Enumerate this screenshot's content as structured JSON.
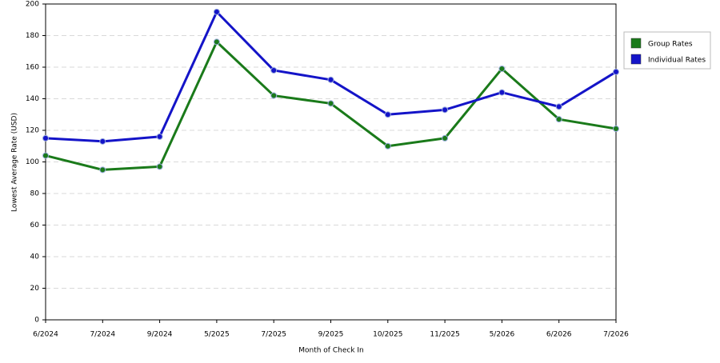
{
  "chart_data": {
    "type": "line",
    "x_label": "Month of Check In",
    "y_label": "Lowest Average Rate (USD)",
    "categories": [
      "6/2024",
      "7/2024",
      "9/2024",
      "5/2025",
      "7/2025",
      "9/2025",
      "10/2025",
      "11/2025",
      "5/2026",
      "6/2026",
      "7/2026"
    ],
    "series": [
      {
        "name": "Group Rates",
        "color": "#1a7a1a",
        "values": [
          104,
          95,
          97,
          176,
          142,
          137,
          110,
          115,
          159,
          127,
          121
        ]
      },
      {
        "name": "Individual Rates",
        "color": "#1414c8",
        "values": [
          115,
          113,
          116,
          195,
          158,
          152,
          130,
          133,
          144,
          135,
          157
        ]
      }
    ],
    "ylim": [
      0,
      200
    ],
    "yticks": [
      0,
      20,
      40,
      60,
      80,
      100,
      120,
      140,
      160,
      180,
      200
    ],
    "grid": true,
    "legend": "right"
  }
}
